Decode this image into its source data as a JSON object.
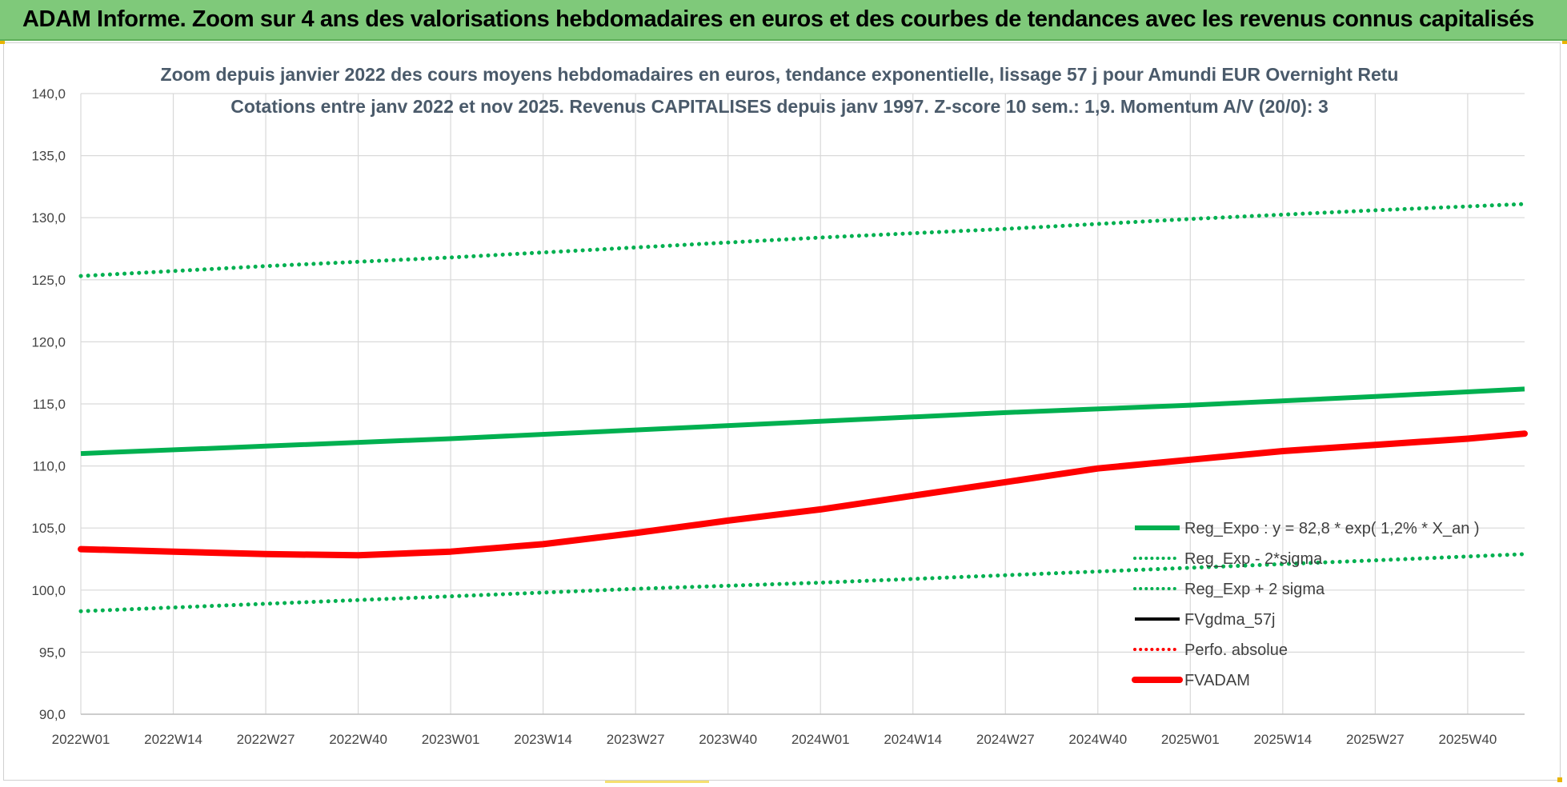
{
  "banner": {
    "title": "ADAM Informe. Zoom sur 4 ans des valorisations hebdomadaires en euros et des courbes de tendances avec les revenus connus capitalisés"
  },
  "colors": {
    "banner_bg": "#7fc97a",
    "trend": "#00b050",
    "fvgdma": "#000000",
    "perfo": "#ff0000",
    "fvadam": "#ff0000",
    "grid": "#d9d9d9"
  },
  "chart_data": {
    "type": "line",
    "title": [
      "Zoom depuis janvier 2022 des cours moyens hebdomadaires en euros, tendance exponentielle, lissage 57 j pour Amundi EUR Overnight Retu",
      "Cotations entre janv 2022 et nov 2025. Revenus CAPITALISES depuis janv 1997. Z-score 10 sem.: 1,9. Momentum A/V (20/0): 3"
    ],
    "x_ticks": [
      "2022W01",
      "2022W14",
      "2022W27",
      "2022W40",
      "2023W01",
      "2023W14",
      "2023W27",
      "2023W40",
      "2024W01",
      "2024W14",
      "2024W27",
      "2024W40",
      "2025W01",
      "2025W14",
      "2025W27",
      "2025W40"
    ],
    "x_range_weeks": [
      0,
      203
    ],
    "y_ticks": [
      "90,0",
      "95,0",
      "100,0",
      "105,0",
      "110,0",
      "115,0",
      "120,0",
      "125,0",
      "130,0",
      "135,0",
      "140,0"
    ],
    "ylim": [
      90,
      140
    ],
    "grid": true,
    "legend_position": "bottom-right",
    "series": [
      {
        "name": "Reg_Expo : y = 82,8 * exp( 1,2% *  X_an )",
        "style": "solid",
        "color": "#00b050",
        "x": [
          0,
          26,
          52,
          78,
          104,
          130,
          156,
          182,
          203
        ],
        "y": [
          111.0,
          111.6,
          112.2,
          112.9,
          113.6,
          114.3,
          114.9,
          115.6,
          116.2
        ]
      },
      {
        "name": "Reg_Exp - 2*sigma",
        "style": "dotted",
        "color": "#00b050",
        "x": [
          0,
          26,
          52,
          78,
          104,
          130,
          156,
          182,
          203
        ],
        "y": [
          98.3,
          98.9,
          99.5,
          100.1,
          100.6,
          101.2,
          101.8,
          102.4,
          102.9
        ]
      },
      {
        "name": "Reg_Exp + 2 sigma",
        "style": "dotted",
        "color": "#00b050",
        "x": [
          0,
          26,
          52,
          78,
          104,
          130,
          156,
          182,
          203
        ],
        "y": [
          125.3,
          126.1,
          126.8,
          127.6,
          128.4,
          129.1,
          129.9,
          130.6,
          131.1
        ]
      },
      {
        "name": "FVgdma_57j",
        "style": "solid-thin",
        "color": "#000000",
        "x": [
          0,
          13,
          26,
          39,
          52,
          65,
          78,
          91,
          104,
          117,
          130,
          143,
          156,
          169,
          182,
          195,
          203
        ],
        "y": [
          103.3,
          103.1,
          102.9,
          102.8,
          103.1,
          103.7,
          104.6,
          105.6,
          106.5,
          107.6,
          108.7,
          109.8,
          110.5,
          111.2,
          111.7,
          112.2,
          112.6
        ]
      },
      {
        "name": "Perfo. absolue",
        "style": "dotted",
        "color": "#ff0000",
        "x": [
          0,
          13,
          26,
          39,
          52,
          65,
          78,
          91,
          104,
          117,
          130,
          143,
          156,
          169,
          182,
          195,
          203
        ],
        "y": [
          103.3,
          103.1,
          102.9,
          102.8,
          103.1,
          103.7,
          104.6,
          105.6,
          106.5,
          107.6,
          108.7,
          109.8,
          110.5,
          111.2,
          111.7,
          112.2,
          112.6
        ]
      },
      {
        "name": "FVADAM",
        "style": "solid-thick",
        "color": "#ff0000",
        "x": [
          0,
          13,
          26,
          39,
          52,
          65,
          78,
          91,
          104,
          117,
          130,
          143,
          156,
          169,
          182,
          195,
          203
        ],
        "y": [
          103.3,
          103.1,
          102.9,
          102.8,
          103.1,
          103.7,
          104.6,
          105.6,
          106.5,
          107.6,
          108.7,
          109.8,
          110.5,
          111.2,
          111.7,
          112.2,
          112.6
        ]
      }
    ]
  }
}
